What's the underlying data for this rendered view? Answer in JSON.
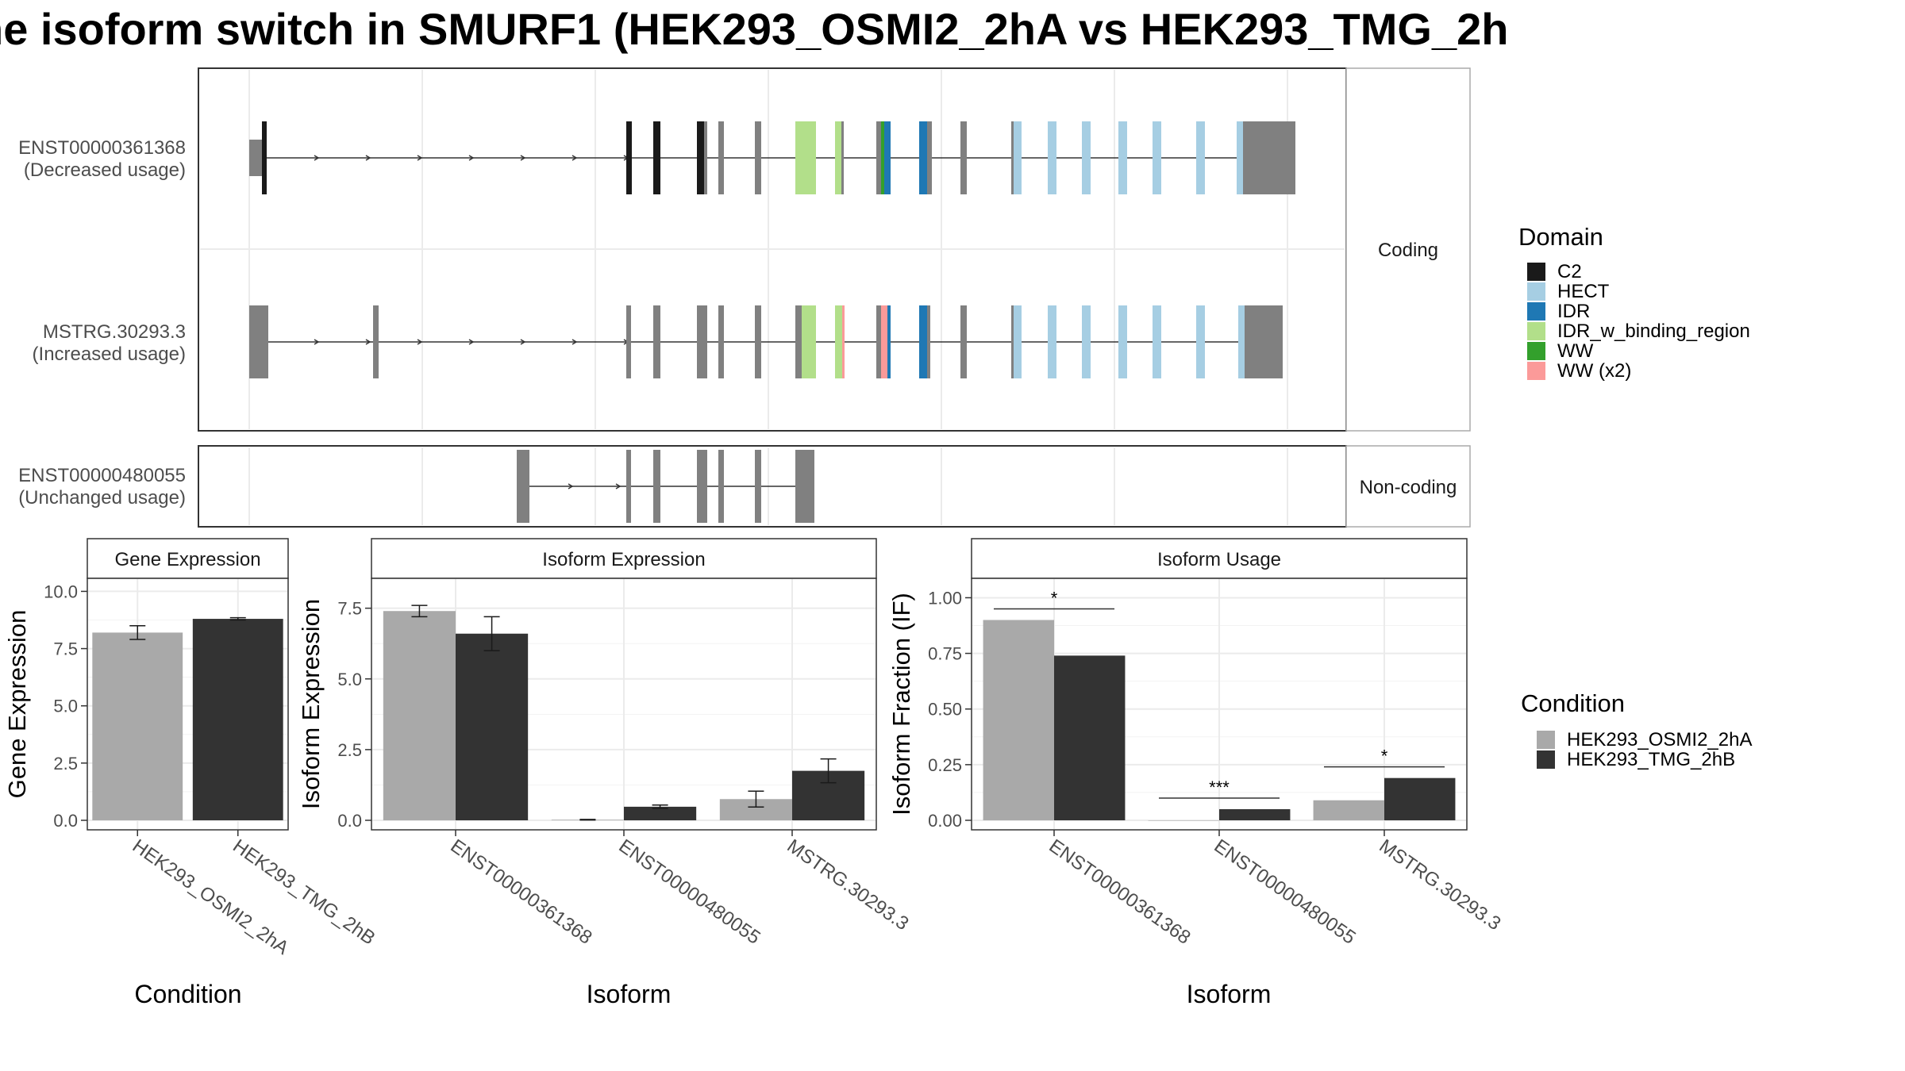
{
  "title": "ne isoform switch in SMURF1 (HEK293_OSMI2_2hA vs HEK293_TMG_2h",
  "colors": {
    "C2": "#1a1a1a",
    "HECT": "#a6cee3",
    "IDR": "#1f78b4",
    "IDR_w_binding_region": "#b2df8a",
    "WW": "#33a02c",
    "WW (x2)": "#fb9a99",
    "exon_default": "#808080",
    "cond_a": "#a9a9a9",
    "cond_b": "#333333"
  },
  "transcripts": {
    "facet_coding": "Coding",
    "facet_noncoding": "Non-coding",
    "tracks": [
      {
        "id": "ENST00000361368",
        "label": "ENST00000361368",
        "sublabel": "(Decreased usage)",
        "group": "Coding"
      },
      {
        "id": "MSTRG.30293.3",
        "label": "MSTRG.30293.3",
        "sublabel": "(Increased usage)",
        "group": "Coding"
      },
      {
        "id": "ENST00000480055",
        "label": "ENST00000480055",
        "sublabel": "(Unchanged usage)",
        "group": "Non-coding"
      }
    ]
  },
  "domain_legend": {
    "title": "Domain",
    "items": [
      "C2",
      "HECT",
      "IDR",
      "IDR_w_binding_region",
      "WW",
      "WW (x2)"
    ]
  },
  "condition_legend": {
    "title": "Condition",
    "items": [
      "HEK293_OSMI2_2hA",
      "HEK293_TMG_2hB"
    ]
  },
  "chart_data": [
    {
      "type": "bar",
      "title": "Gene Expression",
      "xlabel": "Condition",
      "ylabel": "Gene Expression",
      "ylim": [
        0,
        10.5
      ],
      "yticks": [
        "0.0",
        "2.5",
        "5.0",
        "7.5",
        "10.0"
      ],
      "categories": [
        "HEK293_OSMI2_2hA",
        "HEK293_TMG_2hB"
      ],
      "series": [
        {
          "name": "HEK293_OSMI2_2hA",
          "values": [
            8.2,
            null
          ],
          "err": [
            0.3,
            null
          ]
        },
        {
          "name": "HEK293_TMG_2hB",
          "values": [
            null,
            8.8
          ],
          "err": [
            null,
            0.05
          ]
        }
      ]
    },
    {
      "type": "bar",
      "title": "Isoform Expression",
      "xlabel": "Isoform",
      "ylabel": "Isoform Expression",
      "ylim": [
        0,
        8.5
      ],
      "yticks": [
        "0.0",
        "2.5",
        "5.0",
        "7.5"
      ],
      "categories": [
        "ENST00000361368",
        "ENST00000480055",
        "MSTRG.30293.3"
      ],
      "series": [
        {
          "name": "HEK293_OSMI2_2hA",
          "values": [
            7.4,
            0.02,
            0.75
          ],
          "err": [
            0.2,
            0.01,
            0.28
          ]
        },
        {
          "name": "HEK293_TMG_2hB",
          "values": [
            6.6,
            0.48,
            1.75
          ],
          "err": [
            0.6,
            0.06,
            0.42
          ]
        }
      ]
    },
    {
      "type": "bar",
      "title": "Isoform Usage",
      "xlabel": "Isoform",
      "ylabel": "Isoform Fraction (IF)",
      "ylim": [
        0,
        1.08
      ],
      "yticks": [
        "0.00",
        "0.25",
        "0.50",
        "0.75",
        "1.00"
      ],
      "categories": [
        "ENST00000361368",
        "ENST00000480055",
        "MSTRG.30293.3"
      ],
      "series": [
        {
          "name": "HEK293_OSMI2_2hA",
          "values": [
            0.9,
            0.0,
            0.09
          ]
        },
        {
          "name": "HEK293_TMG_2hB",
          "values": [
            0.74,
            0.05,
            0.19
          ]
        }
      ],
      "significance": [
        {
          "category": "ENST00000361368",
          "label": "*",
          "y": 0.95
        },
        {
          "category": "ENST00000480055",
          "label": "***",
          "y": 0.1
        },
        {
          "category": "MSTRG.30293.3",
          "label": "*",
          "y": 0.24
        }
      ]
    }
  ]
}
